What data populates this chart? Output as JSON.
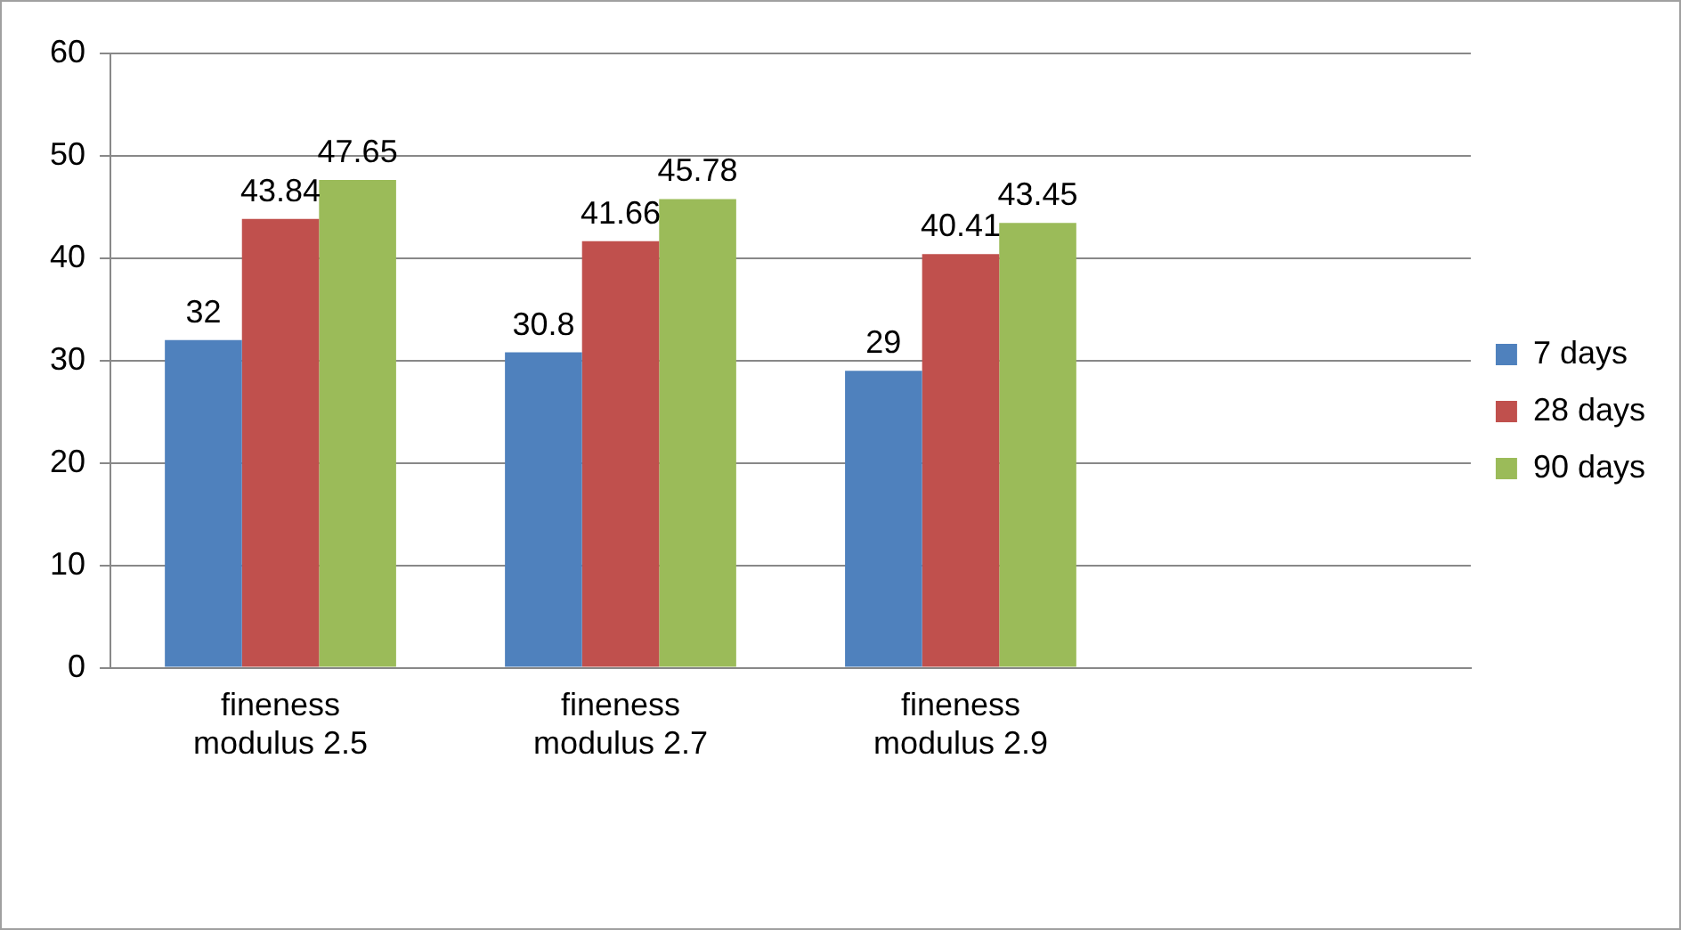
{
  "chart_data": {
    "type": "bar",
    "categories": [
      "fineness modulus 2.5",
      "fineness modulus 2.7",
      "fineness modulus 2.9",
      null
    ],
    "series": [
      {
        "name": "7 days",
        "color": "#4f81bd",
        "values": [
          32,
          30.8,
          29,
          null
        ]
      },
      {
        "name": "28 days",
        "color": "#c0504d",
        "values": [
          43.84,
          41.66,
          40.41,
          null
        ]
      },
      {
        "name": "90 days",
        "color": "#9bbb59",
        "values": [
          47.65,
          45.78,
          43.45,
          null
        ]
      }
    ],
    "ylim": [
      0,
      60
    ],
    "yticks": [
      0,
      10,
      20,
      30,
      40,
      50,
      60
    ],
    "grid": "y",
    "legend": "right",
    "data_labels": true
  }
}
